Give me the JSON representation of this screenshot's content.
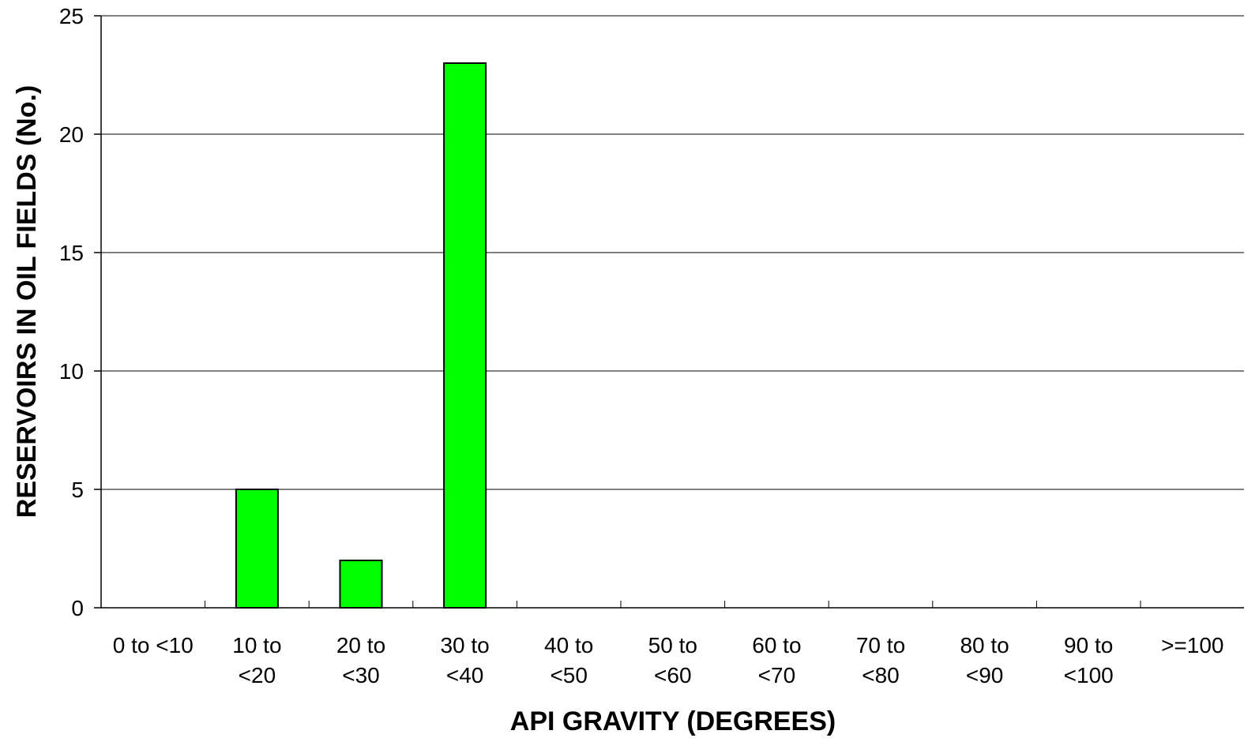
{
  "chart_data": {
    "type": "bar",
    "title": "",
    "xlabel": "API GRAVITY (DEGREES)",
    "ylabel": "RESERVOIRS IN OIL FIELDS (No.)",
    "categories": [
      [
        "0 to <10"
      ],
      [
        "10 to",
        "<20"
      ],
      [
        "20 to",
        "<30"
      ],
      [
        "30 to",
        "<40"
      ],
      [
        "40 to",
        "<50"
      ],
      [
        "50 to",
        "<60"
      ],
      [
        "60 to",
        "<70"
      ],
      [
        "70 to",
        "<80"
      ],
      [
        "80 to",
        "<90"
      ],
      [
        "90 to",
        "<100"
      ],
      [
        ">=100"
      ]
    ],
    "values": [
      0,
      5,
      2,
      23,
      0,
      0,
      0,
      0,
      0,
      0,
      0
    ],
    "ylim": [
      0,
      25
    ],
    "yticks": [
      0,
      5,
      10,
      15,
      20,
      25
    ],
    "grid": true,
    "legend": "none",
    "colors": {
      "bar_fill": "#00ff00",
      "bar_stroke": "#000000",
      "grid": "#000000",
      "axis": "#000000"
    }
  }
}
